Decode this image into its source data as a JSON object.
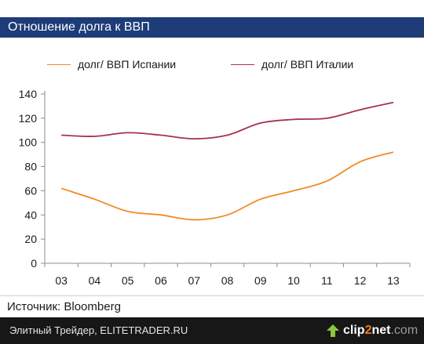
{
  "title": "Отношение долга к ВВП",
  "legend": [
    {
      "label": "долг/ ВВП Испании",
      "color": "#f08a24"
    },
    {
      "label": "долг/ ВВП Италии",
      "color": "#a8324a"
    }
  ],
  "source": "Источник: Bloomberg",
  "footer": {
    "caption": "Элитный Трейдер, ELITETRADER.RU",
    "brand_part1": "clip",
    "brand_part2": "2",
    "brand_part3": "net",
    "brand_part4": ".com"
  },
  "chart_data": {
    "type": "line",
    "categories": [
      "03",
      "04",
      "05",
      "06",
      "07",
      "08",
      "09",
      "10",
      "11",
      "12",
      "13"
    ],
    "series": [
      {
        "name": "долг/ ВВП Испании",
        "color": "#f08a24",
        "values": [
          62,
          53,
          43,
          40,
          36,
          40,
          53,
          60,
          68,
          84,
          92
        ]
      },
      {
        "name": "долг/ ВВП Италии",
        "color": "#a8324a",
        "values": [
          106,
          105,
          108,
          106,
          103,
          106,
          116,
          119,
          120,
          127,
          133
        ]
      }
    ],
    "yticks": [
      0,
      20,
      40,
      60,
      80,
      100,
      120,
      140
    ],
    "ylim": [
      0,
      140
    ],
    "grid": false
  }
}
